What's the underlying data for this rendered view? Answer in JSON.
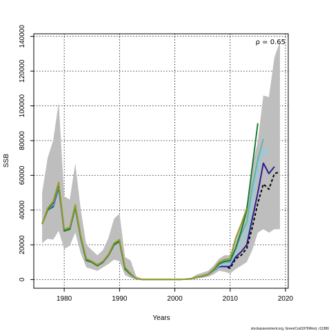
{
  "chart_data": {
    "type": "line",
    "title": "",
    "xlabel": "Years",
    "ylabel": "SSB",
    "xlim": [
      1974.5,
      2020.5
    ],
    "ylim": [
      -5000,
      141500
    ],
    "x_ticks": [
      1980,
      1990,
      2000,
      2010,
      2020
    ],
    "y_ticks": [
      0,
      20000,
      40000,
      60000,
      80000,
      100000,
      120000,
      140000
    ],
    "grid": true,
    "annotation": "ρ = 0.65",
    "credit": "stockassessment.org, GreenCod1976West, r11386",
    "confidence_band": {
      "color": "#bebebe",
      "x": [
        1976,
        1977,
        1978,
        1979,
        1980,
        1981,
        1982,
        1983,
        1984,
        1985,
        1986,
        1987,
        1988,
        1989,
        1990,
        1991,
        1992,
        1993,
        1994,
        1995,
        1996,
        1997,
        1998,
        1999,
        2000,
        2001,
        2002,
        2003,
        2004,
        2005,
        2006,
        2007,
        2008,
        2009,
        2010,
        2011,
        2012,
        2013,
        2014,
        2015,
        2016,
        2017,
        2018,
        2019
      ],
      "lower": [
        21000,
        23500,
        23000,
        28000,
        17500,
        19500,
        27000,
        15000,
        7000,
        6000,
        5000,
        7000,
        9000,
        11500,
        10500,
        2500,
        1000,
        0,
        0,
        0,
        0,
        0,
        0,
        0,
        0,
        0,
        0,
        0,
        500,
        1000,
        1500,
        3000,
        5000,
        4500,
        3500,
        6000,
        8000,
        10000,
        17000,
        27000,
        29000,
        27000,
        29000,
        29000
      ],
      "upper": [
        50000,
        70000,
        80000,
        102000,
        48000,
        46000,
        67000,
        40000,
        20000,
        17000,
        14000,
        17000,
        24000,
        35000,
        38000,
        13000,
        11000,
        2000,
        500,
        300,
        300,
        300,
        300,
        300,
        300,
        300,
        500,
        1000,
        3000,
        4000,
        5000,
        8000,
        12000,
        14000,
        14000,
        24000,
        32000,
        43000,
        65000,
        80000,
        106000,
        105000,
        128000,
        137000
      ]
    },
    "series": [
      {
        "color": "#000000",
        "dashed": true,
        "x": [
          1976,
          1977,
          1978,
          1979,
          1980,
          1981,
          1982,
          1983,
          1984,
          1985,
          1986,
          1987,
          1988,
          1989,
          1990,
          1991,
          1992,
          1993,
          1994,
          1995,
          1996,
          1997,
          1998,
          1999,
          2000,
          2001,
          2002,
          2003,
          2004,
          2005,
          2006,
          2007,
          2008,
          2009,
          2010,
          2011,
          2012,
          2013,
          2014,
          2015,
          2016,
          2017,
          2018,
          2019
        ],
        "y": [
          32000,
          40000,
          43000,
          54000,
          28000,
          29000,
          41000,
          24000,
          11000,
          10000,
          8000,
          10000,
          14000,
          20000,
          22000,
          6000,
          3000,
          500,
          100,
          100,
          100,
          100,
          100,
          100,
          100,
          100,
          200,
          500,
          1500,
          2000,
          3000,
          5000,
          7500,
          7500,
          6500,
          12000,
          14000,
          18000,
          30000,
          44000,
          55000,
          52000,
          61000,
          62000
        ]
      },
      {
        "color": "#2a1e8c",
        "dashed": false,
        "x": [
          1976,
          1977,
          1978,
          1979,
          1980,
          1981,
          1982,
          1983,
          1984,
          1985,
          1986,
          1987,
          1988,
          1989,
          1990,
          1991,
          1992,
          1993,
          1994,
          1995,
          1996,
          1997,
          1998,
          1999,
          2000,
          2001,
          2002,
          2003,
          2004,
          2005,
          2006,
          2007,
          2008,
          2009,
          2010,
          2011,
          2012,
          2013,
          2014,
          2015,
          2016,
          2017,
          2018
        ],
        "y": [
          32000,
          40000,
          42000,
          53000,
          28000,
          29000,
          41000,
          24000,
          11000,
          10000,
          8000,
          10000,
          14000,
          20000,
          22000,
          6000,
          3000,
          500,
          100,
          100,
          100,
          100,
          100,
          100,
          100,
          100,
          200,
          500,
          1500,
          2000,
          3000,
          5000,
          7500,
          7500,
          7500,
          13000,
          16000,
          20000,
          35000,
          50000,
          67000,
          61000,
          65000
        ]
      },
      {
        "color": "#87ceeb",
        "dashed": false,
        "x": [
          1976,
          1977,
          1978,
          1979,
          1980,
          1981,
          1982,
          1983,
          1984,
          1985,
          1986,
          1987,
          1988,
          1989,
          1990,
          1991,
          1992,
          1993,
          1994,
          1995,
          1996,
          1997,
          1998,
          1999,
          2000,
          2001,
          2002,
          2003,
          2004,
          2005,
          2006,
          2007,
          2008,
          2009,
          2010,
          2011,
          2012,
          2013,
          2014,
          2015,
          2016,
          2017
        ],
        "y": [
          32000,
          40000,
          43000,
          54000,
          28000,
          29000,
          41000,
          24000,
          11000,
          10000,
          8000,
          10000,
          14000,
          20000,
          22000,
          6000,
          3000,
          500,
          100,
          100,
          100,
          100,
          100,
          100,
          100,
          100,
          200,
          500,
          1500,
          2000,
          3000,
          5000,
          8000,
          9000,
          9000,
          16000,
          21000,
          26000,
          45000,
          64000,
          75000,
          72000
        ]
      },
      {
        "color": "#5fb7a6",
        "dashed": false,
        "x": [
          1976,
          1977,
          1978,
          1979,
          1980,
          1981,
          1982,
          1983,
          1984,
          1985,
          1986,
          1987,
          1988,
          1989,
          1990,
          1991,
          1992,
          1993,
          1994,
          1995,
          1996,
          1997,
          1998,
          1999,
          2000,
          2001,
          2002,
          2003,
          2004,
          2005,
          2006,
          2007,
          2008,
          2009,
          2010,
          2011,
          2012,
          2013,
          2014,
          2015,
          2016
        ],
        "y": [
          32000,
          40000,
          44000,
          55000,
          28000,
          29000,
          42000,
          24000,
          11000,
          10000,
          8000,
          10000,
          14000,
          20000,
          22000,
          6000,
          3000,
          500,
          100,
          100,
          100,
          100,
          100,
          100,
          100,
          100,
          200,
          500,
          1500,
          2000,
          3000,
          5500,
          9000,
          10000,
          10000,
          18000,
          26000,
          33000,
          53000,
          69000,
          81000
        ]
      },
      {
        "color": "#1b7a33",
        "dashed": false,
        "x": [
          1976,
          1977,
          1978,
          1979,
          1980,
          1981,
          1982,
          1983,
          1984,
          1985,
          1986,
          1987,
          1988,
          1989,
          1990,
          1991,
          1992,
          1993,
          1994,
          1995,
          1996,
          1997,
          1998,
          1999,
          2000,
          2001,
          2002,
          2003,
          2004,
          2005,
          2006,
          2007,
          2008,
          2009,
          2010,
          2011,
          2012,
          2013,
          2014,
          2015
        ],
        "y": [
          32000,
          40000,
          44000,
          55000,
          28000,
          29000,
          42000,
          24000,
          11000,
          10000,
          8000,
          10000,
          14000,
          20000,
          22000,
          6000,
          3000,
          500,
          100,
          100,
          100,
          100,
          100,
          100,
          100,
          100,
          200,
          500,
          1500,
          2000,
          3000,
          5500,
          9000,
          10500,
          11000,
          18000,
          28000,
          40000,
          65000,
          90000
        ]
      },
      {
        "color": "#9a9a2a",
        "dashed": false,
        "x": [
          1976,
          1977,
          1978,
          1979,
          1980,
          1981,
          1982,
          1983,
          1984,
          1985,
          1986,
          1987,
          1988,
          1989,
          1990,
          1991,
          1992,
          1993,
          1994,
          1995,
          1996,
          1997,
          1998,
          1999,
          2000,
          2001,
          2002,
          2003,
          2004,
          2005,
          2006,
          2007,
          2008,
          2009,
          2010,
          2011,
          2012,
          2013
        ],
        "y": [
          32000,
          41000,
          45000,
          56000,
          29000,
          30000,
          43000,
          25000,
          12000,
          10500,
          8500,
          10500,
          14500,
          21000,
          23000,
          7000,
          3500,
          500,
          100,
          100,
          100,
          100,
          100,
          100,
          100,
          100,
          200,
          500,
          1500,
          2200,
          3200,
          6000,
          10000,
          11500,
          12000,
          24000,
          32000,
          41000
        ]
      }
    ]
  }
}
